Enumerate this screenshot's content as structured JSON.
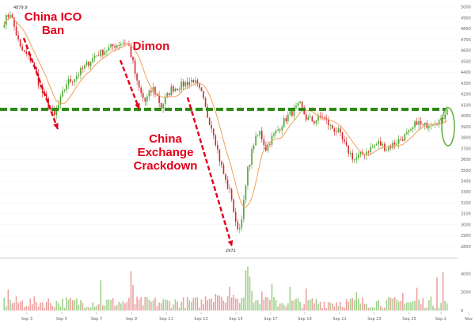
{
  "chart_data": {
    "type": "candlestick",
    "price_axis": {
      "ticks": [
        2800,
        2900,
        3000,
        3100,
        3200,
        3300,
        3400,
        3500,
        3600,
        3700,
        3800,
        3900,
        4000,
        4100,
        4200,
        4300,
        4400,
        4500,
        4600,
        4700,
        4800,
        4900,
        5000
      ],
      "range": [
        2750,
        5050
      ]
    },
    "volume_axis": {
      "ticks": [
        0,
        2000,
        4000
      ],
      "range": [
        0,
        5200
      ]
    },
    "x_labels": [
      "Sep 3",
      "Sep 5",
      "Sep 7",
      "Sep 9",
      "Sep 11",
      "Sep 13",
      "Sep 15",
      "Sep 17",
      "Sep 19",
      "Sep 21",
      "Sep 23",
      "Sep 25",
      "Sep 2",
      "Nov"
    ],
    "price_path": [
      [
        0,
        4870
      ],
      [
        3,
        4950
      ],
      [
        8,
        4620
      ],
      [
        14,
        4500
      ],
      [
        18,
        4250
      ],
      [
        22,
        4100
      ],
      [
        25,
        3995
      ],
      [
        28,
        4150
      ],
      [
        31,
        4300
      ],
      [
        35,
        4350
      ],
      [
        40,
        4450
      ],
      [
        45,
        4550
      ],
      [
        50,
        4600
      ],
      [
        55,
        4650
      ],
      [
        60,
        4680
      ],
      [
        62,
        4640
      ],
      [
        64,
        4480
      ],
      [
        66,
        4300
      ],
      [
        68,
        4200
      ],
      [
        70,
        4130
      ],
      [
        72,
        4200
      ],
      [
        74,
        4250
      ],
      [
        76,
        4180
      ],
      [
        78,
        4080
      ],
      [
        80,
        4150
      ],
      [
        83,
        4250
      ],
      [
        86,
        4260
      ],
      [
        90,
        4300
      ],
      [
        94,
        4330
      ],
      [
        98,
        4200
      ],
      [
        101,
        4000
      ],
      [
        104,
        3850
      ],
      [
        107,
        3600
      ],
      [
        110,
        3400
      ],
      [
        113,
        3250
      ],
      [
        115,
        3000
      ],
      [
        117,
        2972
      ],
      [
        119,
        3200
      ],
      [
        121,
        3500
      ],
      [
        124,
        3750
      ],
      [
        127,
        3850
      ],
      [
        130,
        3700
      ],
      [
        133,
        3800
      ],
      [
        137,
        3900
      ],
      [
        141,
        4000
      ],
      [
        144,
        4050
      ],
      [
        147,
        4100
      ],
      [
        150,
        3980
      ],
      [
        154,
        3950
      ],
      [
        158,
        4000
      ],
      [
        162,
        3900
      ],
      [
        166,
        3850
      ],
      [
        170,
        3700
      ],
      [
        174,
        3600
      ],
      [
        178,
        3650
      ],
      [
        182,
        3700
      ],
      [
        186,
        3750
      ],
      [
        190,
        3700
      ],
      [
        194,
        3750
      ],
      [
        198,
        3800
      ],
      [
        202,
        3850
      ],
      [
        205,
        3950
      ],
      [
        208,
        3900
      ],
      [
        211,
        3930
      ],
      [
        214,
        3960
      ],
      [
        217,
        3950
      ],
      [
        220,
        4080
      ]
    ],
    "annotations": [
      {
        "id": "china-ico-ban",
        "lines": [
          "China ICO",
          "Ban"
        ]
      },
      {
        "id": "dimon",
        "lines": [
          "Dimon"
        ]
      },
      {
        "id": "china-exchange-crackdown",
        "lines": [
          "China",
          "Exchange",
          "Crackdown"
        ]
      }
    ],
    "price_labels": {
      "high": "4879.9",
      "low": "2972"
    },
    "reference_line": {
      "value": 4060,
      "color": "#2d8a14",
      "style": "dashed"
    },
    "colors": {
      "up": "#47a329",
      "down": "#d6262b",
      "moving_average": "#f0a05a",
      "annotation": "#e3001b",
      "highlight": "#5cae3a"
    }
  }
}
